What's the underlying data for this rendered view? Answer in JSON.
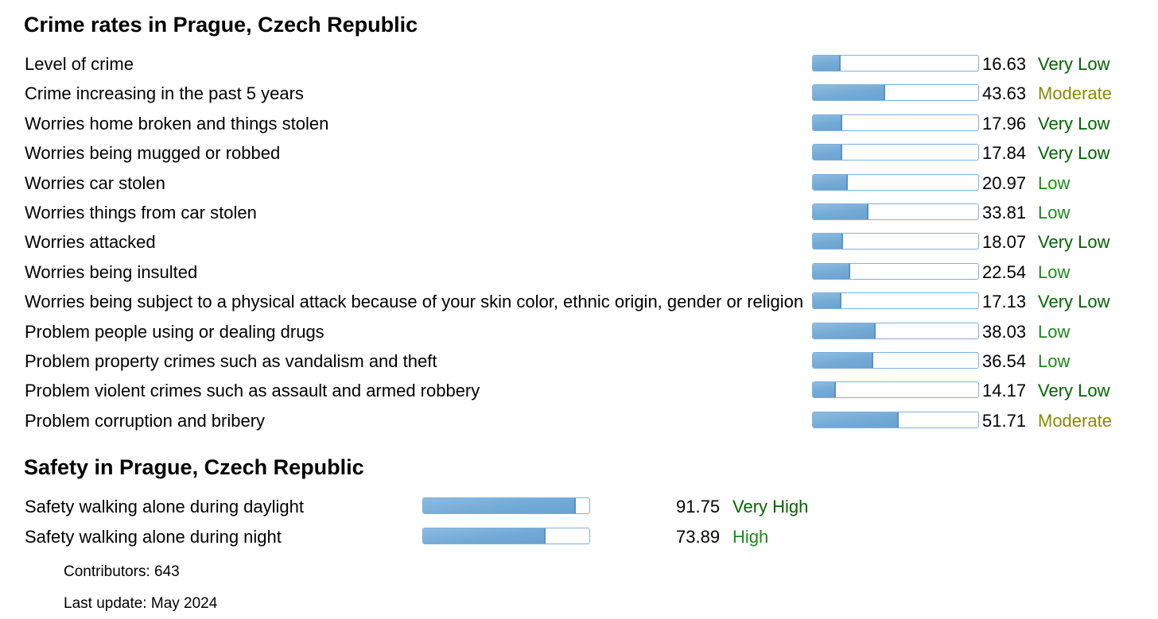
{
  "crime": {
    "title": "Crime rates in Prague, Czech Republic",
    "rows": [
      {
        "label": "Level of crime",
        "value": "16.63",
        "level": 16.63,
        "rating": "Very Low",
        "rating_color": "#006400"
      },
      {
        "label": "Crime increasing in the past 5 years",
        "value": "43.63",
        "level": 43.63,
        "rating": "Moderate",
        "rating_color": "#8a8a00"
      },
      {
        "label": "Worries home broken and things stolen",
        "value": "17.96",
        "level": 17.96,
        "rating": "Very Low",
        "rating_color": "#006400"
      },
      {
        "label": "Worries being mugged or robbed",
        "value": "17.84",
        "level": 17.84,
        "rating": "Very Low",
        "rating_color": "#006400"
      },
      {
        "label": "Worries car stolen",
        "value": "20.97",
        "level": 20.97,
        "rating": "Low",
        "rating_color": "#1a8a1a"
      },
      {
        "label": "Worries things from car stolen",
        "value": "33.81",
        "level": 33.81,
        "rating": "Low",
        "rating_color": "#1a8a1a"
      },
      {
        "label": "Worries attacked",
        "value": "18.07",
        "level": 18.07,
        "rating": "Very Low",
        "rating_color": "#006400"
      },
      {
        "label": "Worries being insulted",
        "value": "22.54",
        "level": 22.54,
        "rating": "Low",
        "rating_color": "#1a8a1a"
      },
      {
        "label": "Worries being subject to a physical attack because of your skin color, ethnic origin, gender or religion",
        "value": "17.13",
        "level": 17.13,
        "rating": "Very Low",
        "rating_color": "#006400"
      },
      {
        "label": "Problem people using or dealing drugs",
        "value": "38.03",
        "level": 38.03,
        "rating": "Low",
        "rating_color": "#1a8a1a"
      },
      {
        "label": "Problem property crimes such as vandalism and theft",
        "value": "36.54",
        "level": 36.54,
        "rating": "Low",
        "rating_color": "#1a8a1a"
      },
      {
        "label": "Problem violent crimes such as assault and armed robbery",
        "value": "14.17",
        "level": 14.17,
        "rating": "Very Low",
        "rating_color": "#006400"
      },
      {
        "label": "Problem corruption and bribery",
        "value": "51.71",
        "level": 51.71,
        "rating": "Moderate",
        "rating_color": "#8a8a00"
      }
    ]
  },
  "safety": {
    "title": "Safety in Prague, Czech Republic",
    "rows": [
      {
        "label": "Safety walking alone during daylight",
        "value": "91.75",
        "level": 91.75,
        "rating": "Very High",
        "rating_color": "#006400"
      },
      {
        "label": "Safety walking alone during night",
        "value": "73.89",
        "level": 73.89,
        "rating": "High",
        "rating_color": "#1a8a1a"
      }
    ]
  },
  "footer": {
    "contributors": "Contributors: 643",
    "last_update": "Last update: May 2024"
  }
}
